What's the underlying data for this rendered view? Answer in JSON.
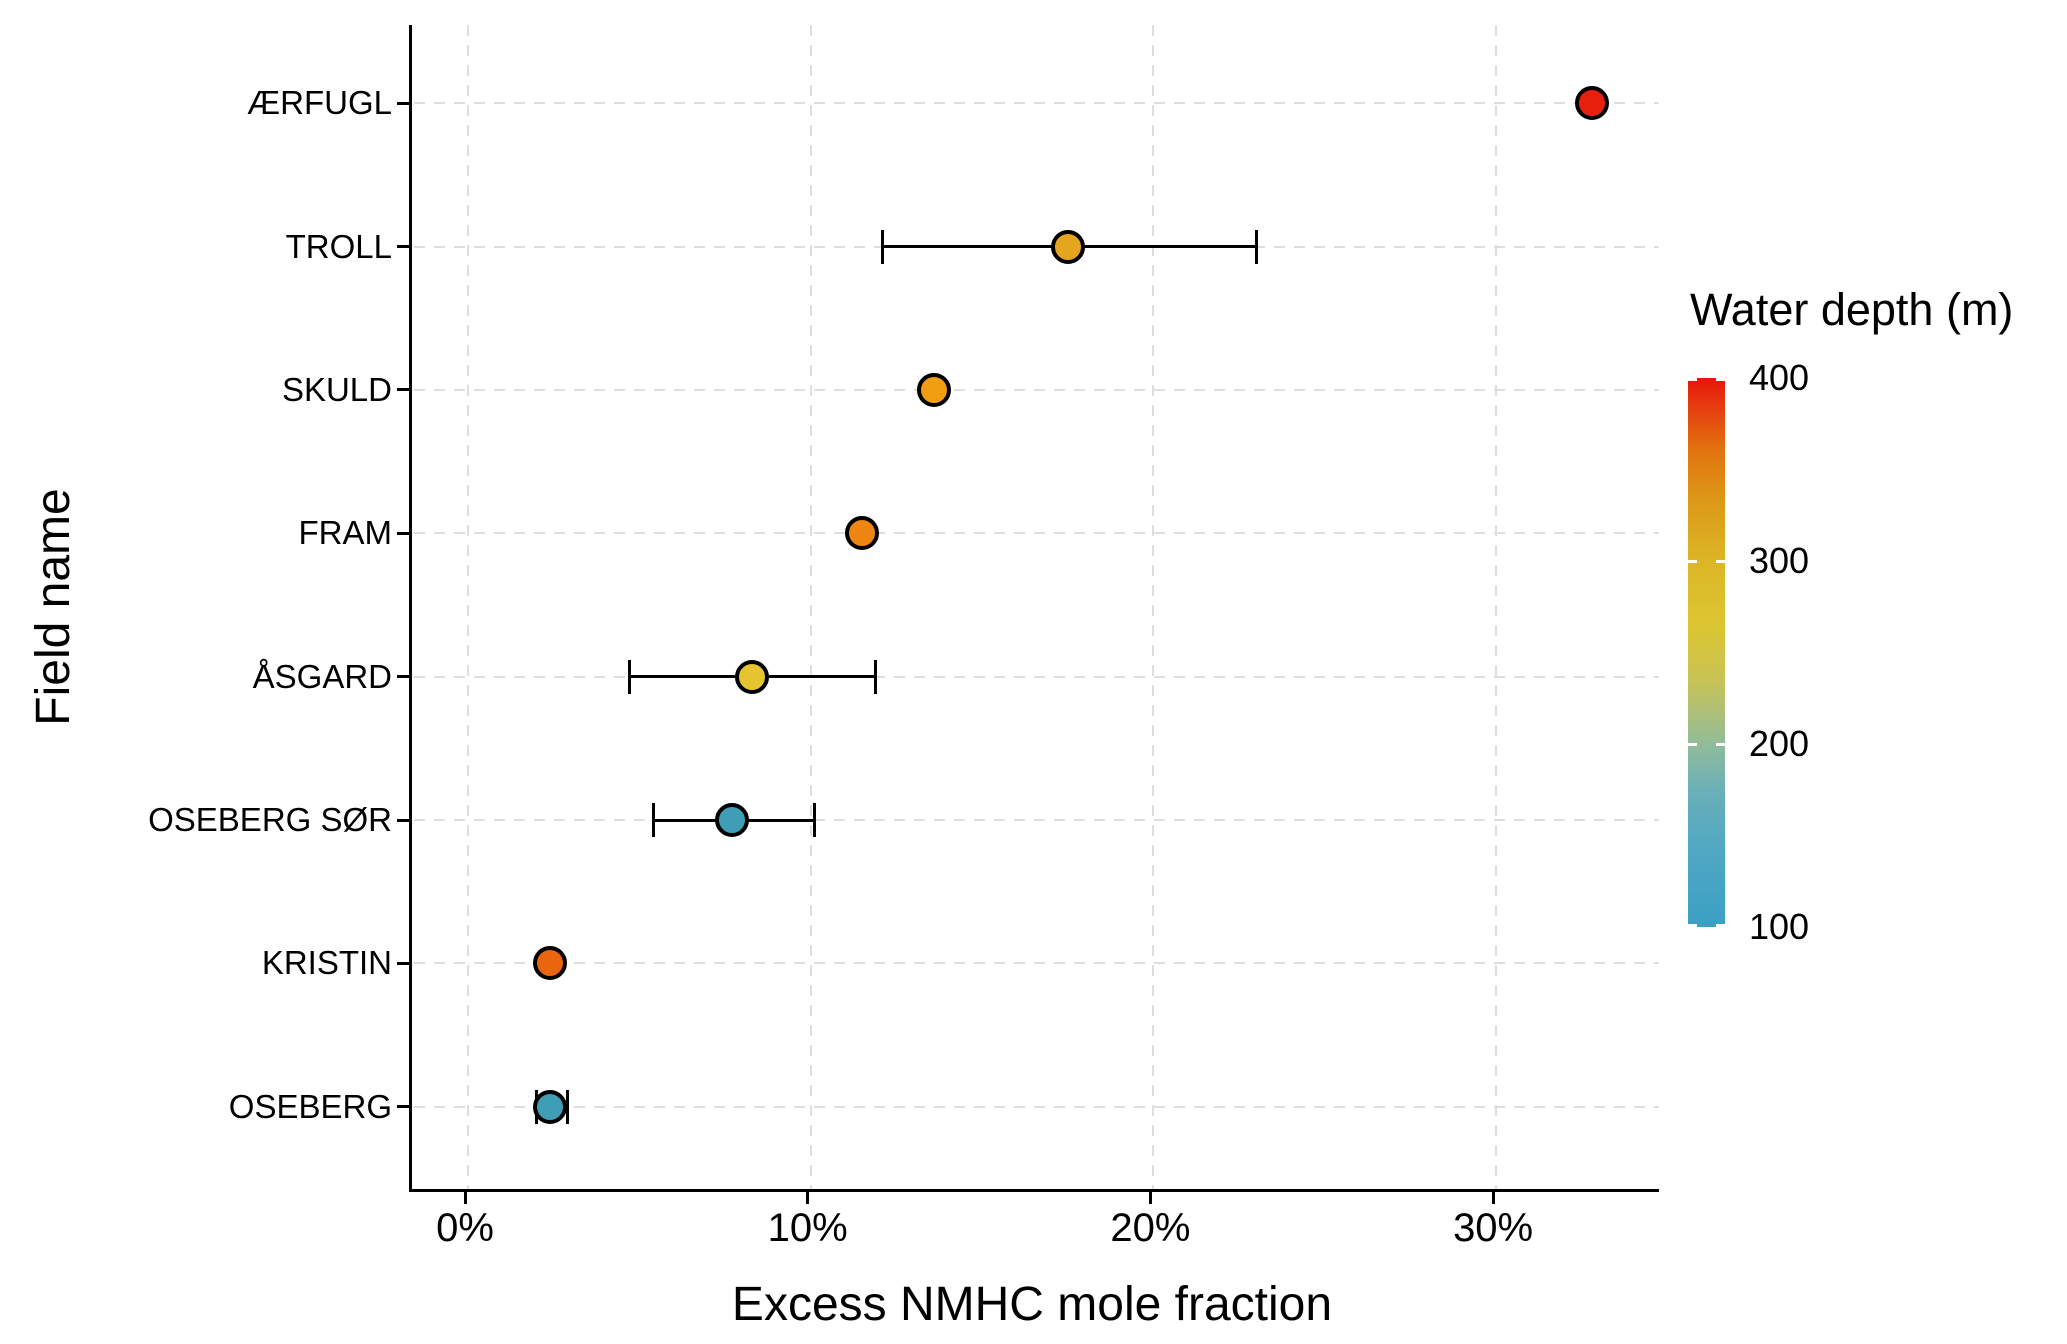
{
  "chart_data": {
    "type": "scatter",
    "subtype": "horizontal dot plot with error bars",
    "title": "",
    "xlabel": "Excess NMHC mole fraction",
    "ylabel": "Field name",
    "x_tick_labels": [
      "0%",
      "10%",
      "20%",
      "30%"
    ],
    "x_tick_values": [
      0,
      10,
      20,
      30
    ],
    "xlim_pct": [
      -1.6,
      34.7
    ],
    "grid": "dashed light-gray major gridlines on white background; solid black left and bottom axis lines",
    "categories": [
      "ÆRFUGL",
      "TROLL",
      "SKULD",
      "FRAM",
      "ÅSGARD",
      "OSEBERG SØR",
      "KRISTIN",
      "OSEBERG"
    ],
    "series": [
      {
        "field": "ÆRFUGL",
        "excess_nmhc_pct": 32.8,
        "err_low_pct": null,
        "err_high_pct": null,
        "dot_color": "#e7200d",
        "water_depth_est_m": 400
      },
      {
        "field": "TROLL",
        "excess_nmhc_pct": 17.5,
        "err_low_pct": 12.1,
        "err_high_pct": 23.0,
        "dot_color": "#e6a51e",
        "water_depth_est_m": 320
      },
      {
        "field": "SKULD",
        "excess_nmhc_pct": 13.6,
        "err_low_pct": null,
        "err_high_pct": null,
        "dot_color": "#f09d11",
        "water_depth_est_m": 340
      },
      {
        "field": "FRAM",
        "excess_nmhc_pct": 11.5,
        "err_low_pct": null,
        "err_high_pct": null,
        "dot_color": "#ee8712",
        "water_depth_est_m": 350
      },
      {
        "field": "ÅSGARD",
        "excess_nmhc_pct": 8.3,
        "err_low_pct": 4.7,
        "err_high_pct": 11.9,
        "dot_color": "#e4c52f",
        "water_depth_est_m": 285
      },
      {
        "field": "OSEBERG SØR",
        "excess_nmhc_pct": 7.7,
        "err_low_pct": 5.4,
        "err_high_pct": 10.1,
        "dot_color": "#3f9db5",
        "water_depth_est_m": 105
      },
      {
        "field": "KRISTIN",
        "excess_nmhc_pct": 2.4,
        "err_low_pct": null,
        "err_high_pct": null,
        "dot_color": "#e9660f",
        "water_depth_est_m": 370
      },
      {
        "field": "OSEBERG",
        "excess_nmhc_pct": 2.4,
        "err_low_pct": 2.0,
        "err_high_pct": 2.9,
        "dot_color": "#3f9db5",
        "water_depth_est_m": 105
      }
    ],
    "legend": {
      "title": "Water depth (m)",
      "position": "right",
      "tick_labels": [
        "400",
        "300",
        "200",
        "100"
      ],
      "tick_values": [
        400,
        300,
        200,
        100
      ],
      "range_m": [
        100,
        400
      ],
      "gradient_top_to_bottom": [
        {
          "stop": 0.0,
          "color": "#e71409"
        },
        {
          "stop": 0.05,
          "color": "#e63b10"
        },
        {
          "stop": 0.13,
          "color": "#e2720f"
        },
        {
          "stop": 0.22,
          "color": "#dd9717"
        },
        {
          "stop": 0.33,
          "color": "#dcb525"
        },
        {
          "stop": 0.45,
          "color": "#ddc531"
        },
        {
          "stop": 0.55,
          "color": "#c8c355"
        },
        {
          "stop": 0.62,
          "color": "#a8bf7e"
        },
        {
          "stop": 0.67,
          "color": "#8fbc9b"
        },
        {
          "stop": 0.75,
          "color": "#6bb0b7"
        },
        {
          "stop": 0.85,
          "color": "#52a8c3"
        },
        {
          "stop": 1.0,
          "color": "#3ba0c4"
        }
      ]
    },
    "colors": {
      "axis": "#000000",
      "gridline": "#dedede",
      "background": "#ffffff",
      "errorbar": "#000000",
      "point_outline": "#000000"
    }
  }
}
